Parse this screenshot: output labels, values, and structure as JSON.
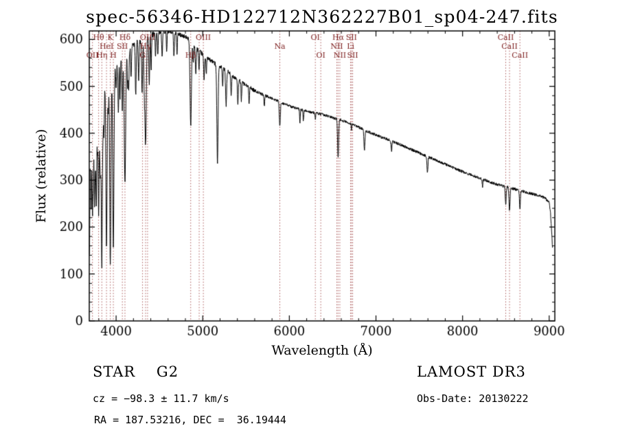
{
  "chart_data": {
    "type": "line",
    "title": "spec-56346-HD122712N362227B01_sp04-247.fits",
    "xlabel": "Wavelength (Å)",
    "ylabel": "Flux (relative)",
    "xlim": [
      3690,
      9065
    ],
    "ylim": [
      0,
      618
    ],
    "xticks": [
      4000,
      5000,
      6000,
      7000,
      8000,
      9000
    ],
    "yticks": [
      0,
      100,
      200,
      300,
      400,
      500,
      600
    ],
    "x_minor_step": 200,
    "y_minor_step": 20,
    "grid": false,
    "line_color": "#000000",
    "marker_line_color": "#a85454",
    "label_color": "#7a1a1a",
    "continuum": [
      [
        3693,
        140
      ],
      [
        3700,
        330
      ],
      [
        3708,
        420
      ],
      [
        3720,
        458
      ],
      [
        3740,
        468
      ],
      [
        3760,
        474
      ],
      [
        3780,
        479
      ],
      [
        3800,
        484
      ],
      [
        3830,
        492
      ],
      [
        3860,
        502
      ],
      [
        3900,
        516
      ],
      [
        3940,
        522
      ],
      [
        3970,
        528
      ],
      [
        4000,
        545
      ],
      [
        4040,
        556
      ],
      [
        4080,
        562
      ],
      [
        4120,
        568
      ],
      [
        4160,
        577
      ],
      [
        4200,
        586
      ],
      [
        4250,
        593
      ],
      [
        4300,
        597
      ],
      [
        4350,
        601
      ],
      [
        4400,
        607
      ],
      [
        4450,
        611
      ],
      [
        4500,
        614
      ],
      [
        4550,
        616
      ],
      [
        4600,
        617
      ],
      [
        4650,
        616
      ],
      [
        4700,
        613
      ],
      [
        4750,
        609
      ],
      [
        4800,
        605
      ],
      [
        4850,
        601
      ],
      [
        4900,
        585
      ],
      [
        4950,
        577
      ],
      [
        5000,
        568
      ],
      [
        5050,
        560
      ],
      [
        5100,
        554
      ],
      [
        5150,
        548
      ],
      [
        5200,
        542
      ],
      [
        5250,
        536
      ],
      [
        5300,
        530
      ],
      [
        5350,
        522
      ],
      [
        5400,
        515
      ],
      [
        5450,
        508
      ],
      [
        5500,
        502
      ],
      [
        5550,
        496
      ],
      [
        5600,
        491
      ],
      [
        5650,
        486
      ],
      [
        5700,
        482
      ],
      [
        5750,
        478
      ],
      [
        5800,
        474
      ],
      [
        5850,
        470
      ],
      [
        5900,
        466
      ],
      [
        5950,
        462
      ],
      [
        6000,
        458
      ],
      [
        6100,
        452
      ],
      [
        6200,
        447
      ],
      [
        6300,
        443
      ],
      [
        6400,
        439
      ],
      [
        6500,
        433
      ],
      [
        6600,
        428
      ],
      [
        6700,
        421
      ],
      [
        6800,
        413
      ],
      [
        6900,
        404
      ],
      [
        7000,
        396
      ],
      [
        7100,
        389
      ],
      [
        7200,
        382
      ],
      [
        7300,
        374
      ],
      [
        7400,
        366
      ],
      [
        7500,
        358
      ],
      [
        7600,
        350
      ],
      [
        7700,
        342
      ],
      [
        7800,
        334
      ],
      [
        7900,
        326
      ],
      [
        8000,
        318
      ],
      [
        8100,
        311
      ],
      [
        8200,
        304
      ],
      [
        8300,
        297
      ],
      [
        8400,
        291
      ],
      [
        8500,
        286
      ],
      [
        8600,
        281
      ],
      [
        8700,
        276
      ],
      [
        8800,
        271
      ],
      [
        8900,
        266
      ],
      [
        8950,
        262
      ],
      [
        9000,
        252
      ],
      [
        9015,
        230
      ],
      [
        9030,
        185
      ],
      [
        9040,
        150
      ]
    ],
    "absorption_lines": [
      [
        3712,
        5,
        200
      ],
      [
        3727,
        5,
        225
      ],
      [
        3737,
        4,
        150
      ],
      [
        3750,
        5,
        215
      ],
      [
        3760,
        4,
        110
      ],
      [
        3771,
        5,
        235
      ],
      [
        3784,
        4,
        95
      ],
      [
        3798,
        6,
        255
      ],
      [
        3812,
        4,
        85
      ],
      [
        3820,
        5,
        155
      ],
      [
        3835,
        6,
        380
      ],
      [
        3850,
        4,
        85
      ],
      [
        3860,
        4,
        105
      ],
      [
        3889,
        7,
        355
      ],
      [
        3910,
        4,
        75
      ],
      [
        3933,
        7,
        405
      ],
      [
        3968,
        7,
        368
      ],
      [
        4000,
        4,
        55
      ],
      [
        4026,
        5,
        105
      ],
      [
        4045,
        4,
        80
      ],
      [
        4072,
        5,
        115
      ],
      [
        4102,
        8,
        268
      ],
      [
        4132,
        4,
        65
      ],
      [
        4144,
        5,
        85
      ],
      [
        4172,
        4,
        65
      ],
      [
        4226,
        5,
        110
      ],
      [
        4260,
        5,
        75
      ],
      [
        4300,
        6,
        105
      ],
      [
        4325,
        5,
        85
      ],
      [
        4340,
        8,
        222
      ],
      [
        4383,
        5,
        95
      ],
      [
        4405,
        4,
        70
      ],
      [
        4455,
        4,
        52
      ],
      [
        4481,
        4,
        48
      ],
      [
        4531,
        5,
        52
      ],
      [
        4584,
        4,
        42
      ],
      [
        4668,
        5,
        52
      ],
      [
        4703,
        4,
        42
      ],
      [
        4861,
        8,
        182
      ],
      [
        4891,
        4,
        38
      ],
      [
        4920,
        5,
        55
      ],
      [
        4957,
        4,
        42
      ],
      [
        5015,
        5,
        50
      ],
      [
        5041,
        4,
        38
      ],
      [
        5170,
        7,
        208
      ],
      [
        5230,
        4,
        42
      ],
      [
        5270,
        6,
        75
      ],
      [
        5328,
        5,
        45
      ],
      [
        5406,
        5,
        52
      ],
      [
        5446,
        4,
        38
      ],
      [
        5535,
        4,
        32
      ],
      [
        5711,
        4,
        24
      ],
      [
        5890,
        6,
        52
      ],
      [
        6122,
        4,
        28
      ],
      [
        6162,
        4,
        22
      ],
      [
        6300,
        3,
        14
      ],
      [
        6563,
        6,
        82
      ],
      [
        6717,
        3,
        12
      ],
      [
        6867,
        6,
        42
      ],
      [
        7180,
        5,
        20
      ],
      [
        7594,
        6,
        34
      ],
      [
        8230,
        4,
        16
      ],
      [
        8498,
        5,
        38
      ],
      [
        8542,
        6,
        48
      ],
      [
        8662,
        5,
        42
      ]
    ],
    "noise": {
      "seed": 42,
      "amp_blue": 8,
      "amp_mid": 4.5,
      "amp_red": 3
    },
    "spectral_lines": [
      3727,
      3798,
      3835,
      3889,
      3933,
      3968,
      4072,
      4102,
      4305,
      4340,
      4363,
      4861,
      4959,
      5007,
      5890,
      6300,
      6363,
      6548,
      6563,
      6583,
      6707,
      6717,
      6731,
      8498,
      8542,
      8662
    ],
    "line_labels": [
      {
        "text": "Hθ",
        "wavelength": 3798,
        "row": 0
      },
      {
        "text": "K",
        "wavelength": 3933,
        "row": 0
      },
      {
        "text": "Hδ",
        "wavelength": 4102,
        "row": 0
      },
      {
        "text": "OIII",
        "wavelength": 4363,
        "row": 0
      },
      {
        "text": "OIII",
        "wavelength": 5007,
        "row": 0
      },
      {
        "text": "OI",
        "wavelength": 6300,
        "row": 0
      },
      {
        "text": "Hα",
        "wavelength": 6563,
        "row": 0
      },
      {
        "text": "SII",
        "wavelength": 6717,
        "row": 0
      },
      {
        "text": "CaII",
        "wavelength": 8498,
        "row": 0
      },
      {
        "text": "HeI",
        "wavelength": 3889,
        "row": 1
      },
      {
        "text": "SII",
        "wavelength": 4072,
        "row": 1
      },
      {
        "text": "Hγ",
        "wavelength": 4340,
        "row": 1
      },
      {
        "text": "Na",
        "wavelength": 5890,
        "row": 1
      },
      {
        "text": "NII",
        "wavelength": 6548,
        "row": 1
      },
      {
        "text": "Li",
        "wavelength": 6707,
        "row": 1
      },
      {
        "text": "CaII",
        "wavelength": 8542,
        "row": 1
      },
      {
        "text": "OII",
        "wavelength": 3727,
        "row": 2
      },
      {
        "text": "Hη",
        "wavelength": 3835,
        "row": 2
      },
      {
        "text": "H",
        "wavelength": 3968,
        "row": 2
      },
      {
        "text": "G",
        "wavelength": 4305,
        "row": 2
      },
      {
        "text": "Hβ",
        "wavelength": 4861,
        "row": 2
      },
      {
        "text": "OI",
        "wavelength": 6363,
        "row": 2
      },
      {
        "text": "NII",
        "wavelength": 6583,
        "row": 2
      },
      {
        "text": "SII",
        "wavelength": 6731,
        "row": 2
      },
      {
        "text": "CaII",
        "wavelength": 8662,
        "row": 2
      }
    ]
  },
  "annotations": {
    "class_line": "STAR    G2",
    "survey": "LAMOST DR3",
    "cz_line": "cz = −98.3 ± 11.7 km/s",
    "obs_date": "Obs-Date: 20130222",
    "radec": "RA = 187.53216, DEC =  36.19444"
  }
}
